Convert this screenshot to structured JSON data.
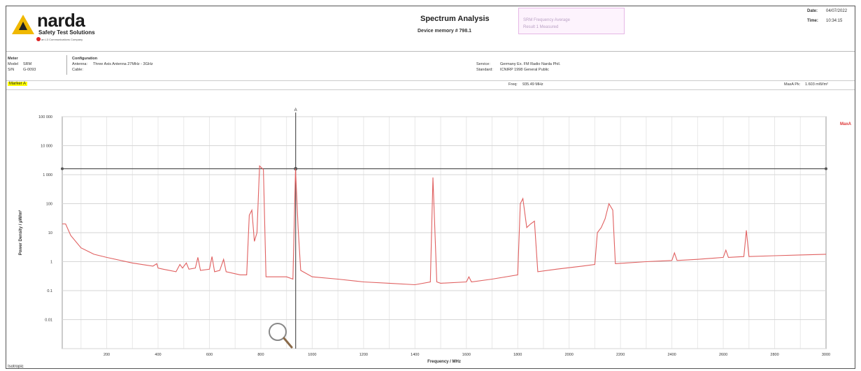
{
  "header": {
    "brand": "narda",
    "brand_sub": "Safety Test Solutions",
    "brand_company": "an L3 Communications Company",
    "title": "Spectrum Analysis",
    "subtitle": "Device memory # 798.1",
    "ghost_line1": "",
    "ghost_line2": "SRM   Frequency   Average",
    "ghost_line3": "Result 1   Measured",
    "date_label": "Date:",
    "date_value": "04/07/2022",
    "time_label": "Time:",
    "time_value": "10:34:15"
  },
  "meta": {
    "meter_title": "Meter",
    "model_label": "Model",
    "model_value": "SRM",
    "sn_label": "S/N",
    "sn_value": "G-0093",
    "config_title": "Configuration",
    "antenna_label": "Antenna:",
    "antenna_value": "Three Axis Antenna 27MHz - 3GHz",
    "cable_label": "Cable:",
    "service_label": "Service:",
    "service_value": "Germany Ex. FM Radio Narda Phil.",
    "standard_label": "Standard:",
    "standard_value": "ICNIRP 1998 General Public"
  },
  "marker": {
    "label": "Marker A",
    "freq_label": "Freq:",
    "freq_value": "935.49 MHz",
    "maxpk_label": "MaxA Pk:",
    "maxpk_value": "1.603 mW/m²"
  },
  "chart_data": {
    "type": "line",
    "ylabel": "Power Density / µW/m²",
    "xlabel": "Frequency / MHz",
    "legend": "MaxA",
    "y_scale": "log",
    "ylim": [
      0.001,
      100000
    ],
    "xlim": [
      27,
      3000
    ],
    "y_ticks": [
      "100 000",
      "10 000",
      "1 000",
      "100",
      "10",
      "1",
      "0.1",
      "0.01"
    ],
    "y_tick_values": [
      100000,
      10000,
      1000,
      100,
      10,
      1,
      0.1,
      0.01
    ],
    "x_ticks": [
      "200",
      "400",
      "600",
      "800",
      "1000",
      "1200",
      "1400",
      "1600",
      "1800",
      "2000",
      "2200",
      "2400",
      "2600",
      "2800",
      "3000"
    ],
    "x_tick_values": [
      200,
      400,
      600,
      800,
      1000,
      1200,
      1400,
      1600,
      1800,
      2000,
      2200,
      2400,
      2600,
      2800,
      3000
    ],
    "threshold": 1603,
    "marker_x": 935.49,
    "marker_label": "A",
    "series": [
      {
        "color": "#e06060",
        "points": [
          [
            27,
            20
          ],
          [
            40,
            20
          ],
          [
            60,
            8
          ],
          [
            100,
            3
          ],
          [
            150,
            1.8
          ],
          [
            200,
            1.4
          ],
          [
            300,
            0.9
          ],
          [
            380,
            0.7
          ],
          [
            395,
            0.85
          ],
          [
            400,
            0.6
          ],
          [
            420,
            0.55
          ],
          [
            470,
            0.45
          ],
          [
            485,
            0.8
          ],
          [
            495,
            0.6
          ],
          [
            510,
            0.9
          ],
          [
            520,
            0.55
          ],
          [
            545,
            0.6
          ],
          [
            555,
            1.4
          ],
          [
            565,
            0.5
          ],
          [
            600,
            0.55
          ],
          [
            610,
            1.5
          ],
          [
            620,
            0.45
          ],
          [
            640,
            0.5
          ],
          [
            655,
            1.2
          ],
          [
            665,
            0.45
          ],
          [
            720,
            0.35
          ],
          [
            745,
            0.35
          ],
          [
            755,
            40
          ],
          [
            765,
            60
          ],
          [
            775,
            5
          ],
          [
            785,
            10
          ],
          [
            795,
            2000
          ],
          [
            810,
            1500
          ],
          [
            820,
            0.3
          ],
          [
            900,
            0.3
          ],
          [
            925,
            0.25
          ],
          [
            935,
            1603
          ],
          [
            945,
            15
          ],
          [
            955,
            0.5
          ],
          [
            1000,
            0.3
          ],
          [
            1100,
            0.25
          ],
          [
            1200,
            0.2
          ],
          [
            1300,
            0.18
          ],
          [
            1400,
            0.16
          ],
          [
            1460,
            0.2
          ],
          [
            1470,
            800
          ],
          [
            1485,
            0.2
          ],
          [
            1500,
            0.18
          ],
          [
            1600,
            0.2
          ],
          [
            1610,
            0.3
          ],
          [
            1620,
            0.2
          ],
          [
            1700,
            0.25
          ],
          [
            1800,
            0.35
          ],
          [
            1810,
            100
          ],
          [
            1820,
            150
          ],
          [
            1835,
            15
          ],
          [
            1850,
            20
          ],
          [
            1865,
            25
          ],
          [
            1878,
            0.45
          ],
          [
            1950,
            0.55
          ],
          [
            2050,
            0.7
          ],
          [
            2100,
            0.8
          ],
          [
            2110,
            10
          ],
          [
            2125,
            15
          ],
          [
            2140,
            30
          ],
          [
            2155,
            100
          ],
          [
            2170,
            60
          ],
          [
            2180,
            0.85
          ],
          [
            2300,
            1
          ],
          [
            2400,
            1.1
          ],
          [
            2410,
            2
          ],
          [
            2420,
            1.1
          ],
          [
            2500,
            1.2
          ],
          [
            2600,
            1.4
          ],
          [
            2610,
            2.5
          ],
          [
            2620,
            1.4
          ],
          [
            2680,
            1.5
          ],
          [
            2690,
            12
          ],
          [
            2700,
            1.5
          ],
          [
            2800,
            1.6
          ],
          [
            2900,
            1.7
          ],
          [
            3000,
            1.8
          ]
        ]
      }
    ]
  },
  "footer": {
    "note": "Isotropic"
  }
}
